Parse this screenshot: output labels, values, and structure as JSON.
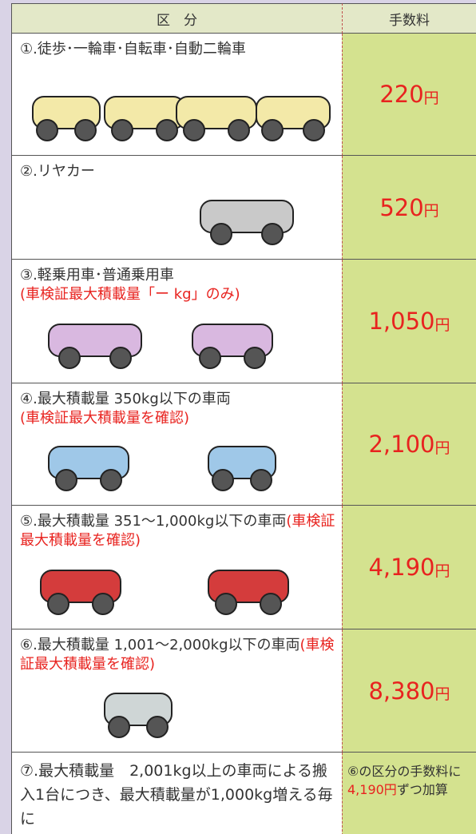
{
  "header": {
    "category": "区　分",
    "fee": "手数料"
  },
  "rows": [
    {
      "label": "①.徒歩･一輪車･自転車･自動二輪車",
      "amount": "220",
      "unit": "円"
    },
    {
      "label": "②.リヤカー",
      "amount": "520",
      "unit": "円"
    },
    {
      "label": "③.軽乗用車･普通乗用車",
      "note": "(車検証最大積載量「ー kg」のみ)",
      "amount": "1,050",
      "unit": "円"
    },
    {
      "label": "④.最大積載量 350kg以下の車両",
      "note": "(車検証最大積載量を確認)",
      "amount": "2,100",
      "unit": "円"
    },
    {
      "label": "⑤.最大積載量 351〜1,000kg以下の車両",
      "note": "(車検証最大積載量を確認)",
      "amount": "4,190",
      "unit": "円"
    },
    {
      "label": "⑥.最大積載量 1,001〜2,000kg以下の車両",
      "note": "(車検証最大積載量を確認)",
      "amount": "8,380",
      "unit": "円"
    },
    {
      "label": "⑦.最大積載量　2,001kg以上の車両による搬入1台につき、最大積載量が1,000kg増える毎に",
      "fee_before": "⑥の区分の手数料に",
      "fee_highlight": "4,190円",
      "fee_after": "ずつ加算"
    }
  ]
}
